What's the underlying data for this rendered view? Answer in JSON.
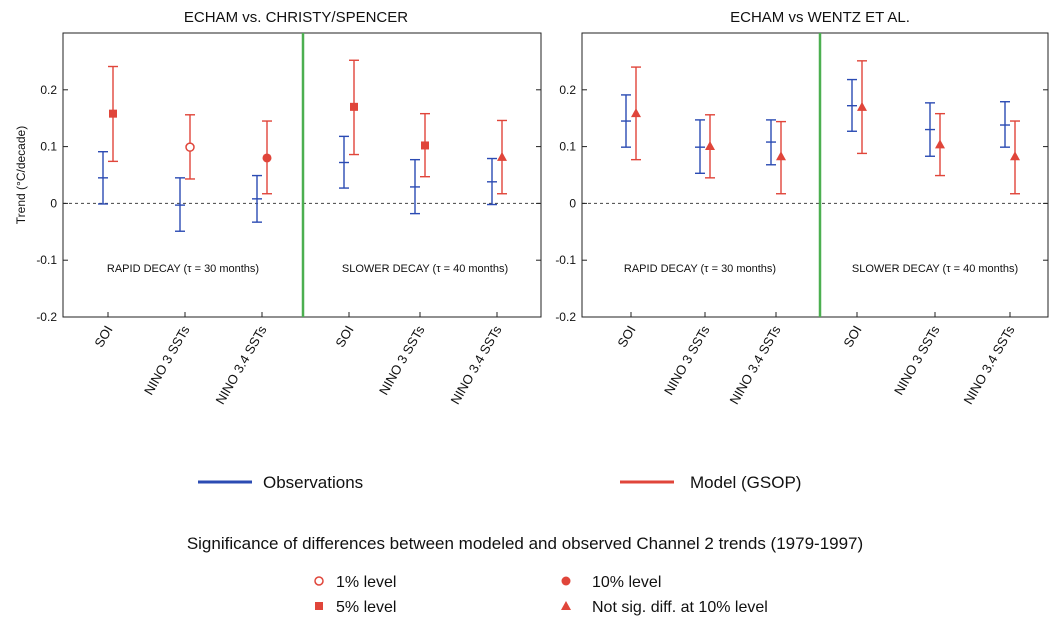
{
  "chart_data": [
    {
      "type": "errorbar",
      "title": "ECHAM vs. CHRISTY/SPENCER",
      "ylabel": "Trend (°C/decade)",
      "ylim": [
        -0.2,
        0.3
      ],
      "yticks": [
        -0.2,
        -0.1,
        0,
        0.1,
        0.2
      ],
      "ytick_labels": [
        "-0.2",
        "-0.1",
        "0",
        "0.1",
        "0.2"
      ],
      "categories": [
        "SOI",
        "NINO 3 SSTs",
        "NINO 3.4 SSTs",
        "SOI",
        "NINO 3 SSTs",
        "NINO 3.4 SSTs"
      ],
      "group_labels": [
        "RAPID DECAY (τ = 30 months)",
        "SLOWER DECAY (τ = 40 months)"
      ],
      "zero_line": "dashed",
      "series": [
        {
          "name": "Observations",
          "color": "#2b4bb3",
          "values": [
            0.045,
            -0.003,
            0.008,
            0.072,
            0.029,
            0.038
          ],
          "lower": [
            -0.001,
            -0.049,
            -0.033,
            0.027,
            -0.018,
            -0.002
          ],
          "upper": [
            0.091,
            0.045,
            0.049,
            0.118,
            0.077,
            0.079
          ]
        },
        {
          "name": "Model (GSOP)",
          "color": "#e0453a",
          "values": [
            0.158,
            0.099,
            0.08,
            0.17,
            0.102,
            0.082
          ],
          "lower": [
            0.074,
            0.043,
            0.017,
            0.086,
            0.047,
            0.017
          ],
          "upper": [
            0.241,
            0.156,
            0.145,
            0.252,
            0.158,
            0.146
          ],
          "markers": [
            "square",
            "open-circle",
            "circle",
            "square",
            "square",
            "triangle"
          ]
        }
      ]
    },
    {
      "type": "errorbar",
      "title": "ECHAM vs WENTZ ET AL.",
      "ylim": [
        -0.2,
        0.3
      ],
      "yticks": [
        -0.2,
        -0.1,
        0,
        0.1,
        0.2
      ],
      "ytick_labels": [
        "-0.2",
        "-0.1",
        "0",
        "0.1",
        "0.2"
      ],
      "categories": [
        "SOI",
        "NINO 3 SSTs",
        "NINO 3.4 SSTs",
        "SOI",
        "NINO 3 SSTs",
        "NINO 3.4 SSTs"
      ],
      "group_labels": [
        "RAPID DECAY (τ = 30 months)",
        "SLOWER DECAY (τ = 40 months)"
      ],
      "zero_line": "dashed",
      "series": [
        {
          "name": "Observations",
          "color": "#2b4bb3",
          "values": [
            0.145,
            0.099,
            0.108,
            0.172,
            0.13,
            0.138
          ],
          "lower": [
            0.099,
            0.053,
            0.068,
            0.127,
            0.083,
            0.099
          ],
          "upper": [
            0.191,
            0.147,
            0.147,
            0.218,
            0.177,
            0.179
          ]
        },
        {
          "name": "Model (GSOP)",
          "color": "#e0453a",
          "values": [
            0.159,
            0.101,
            0.083,
            0.17,
            0.104,
            0.083
          ],
          "lower": [
            0.077,
            0.045,
            0.017,
            0.088,
            0.049,
            0.017
          ],
          "upper": [
            0.24,
            0.156,
            0.144,
            0.251,
            0.158,
            0.145
          ],
          "markers": [
            "triangle",
            "triangle",
            "triangle",
            "triangle",
            "triangle",
            "triangle"
          ]
        }
      ]
    }
  ],
  "legend": {
    "observations_label": "Observations",
    "model_label": "Model (GSOP)",
    "observations_color": "#2b4bb3",
    "model_color": "#e0453a"
  },
  "significance": {
    "title": "Significance of differences between modeled and observed Channel 2 trends (1979-1997)",
    "items": [
      {
        "marker": "open-circle",
        "label": "1% level"
      },
      {
        "marker": "square",
        "label": "5% level"
      },
      {
        "marker": "circle",
        "label": "10% level"
      },
      {
        "marker": "triangle",
        "label": "Not sig. diff. at 10% level"
      }
    ]
  },
  "divider_color": "#4caf50"
}
